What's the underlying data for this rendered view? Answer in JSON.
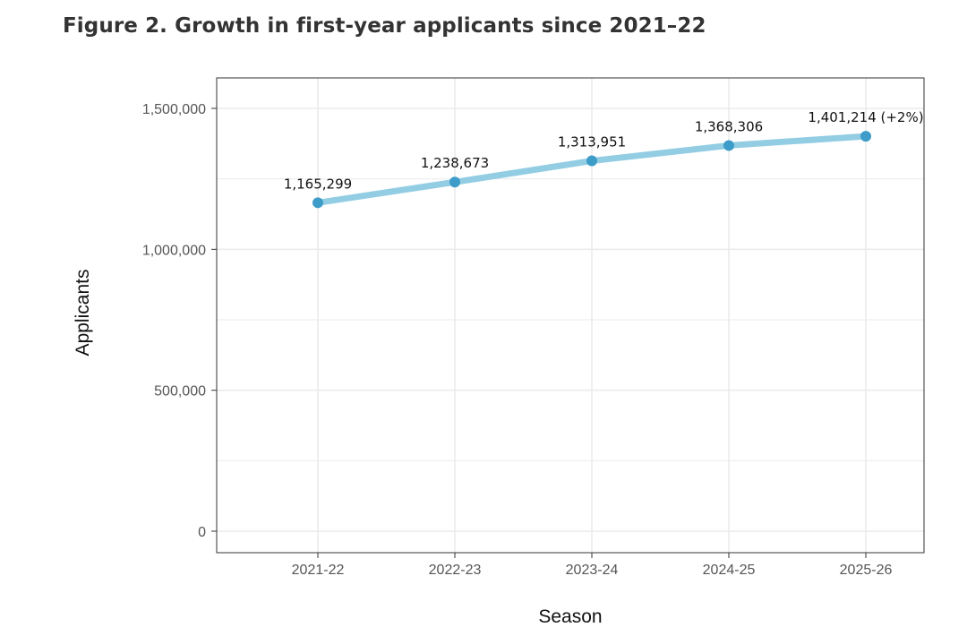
{
  "figure": {
    "title": "Figure 2. Growth in first-year applicants since 2021–22"
  },
  "chart_data": {
    "type": "line",
    "title": "Figure 2. Growth in first-year applicants since 2021–22",
    "xlabel": "Season",
    "ylabel": "Applicants",
    "categories": [
      "2021-22",
      "2022-23",
      "2023-24",
      "2024-25",
      "2025-26"
    ],
    "values": [
      1165299,
      1238673,
      1313951,
      1368306,
      1401214
    ],
    "data_labels": [
      "1,165,299",
      "1,238,673",
      "1,313,951",
      "1,368,306",
      "1,401,214 (+2%)"
    ],
    "ylim": [
      0,
      1500000
    ],
    "yticks": [
      0,
      500000,
      1000000,
      1500000
    ],
    "ytick_labels": [
      "0",
      "500,000",
      "1,000,000",
      "1,500,000"
    ],
    "grid": true,
    "legend": "none",
    "colors": {
      "line": "#92cde3",
      "point": "#3e9cc8",
      "grid": "#ebebeb",
      "border": "#333333"
    }
  }
}
